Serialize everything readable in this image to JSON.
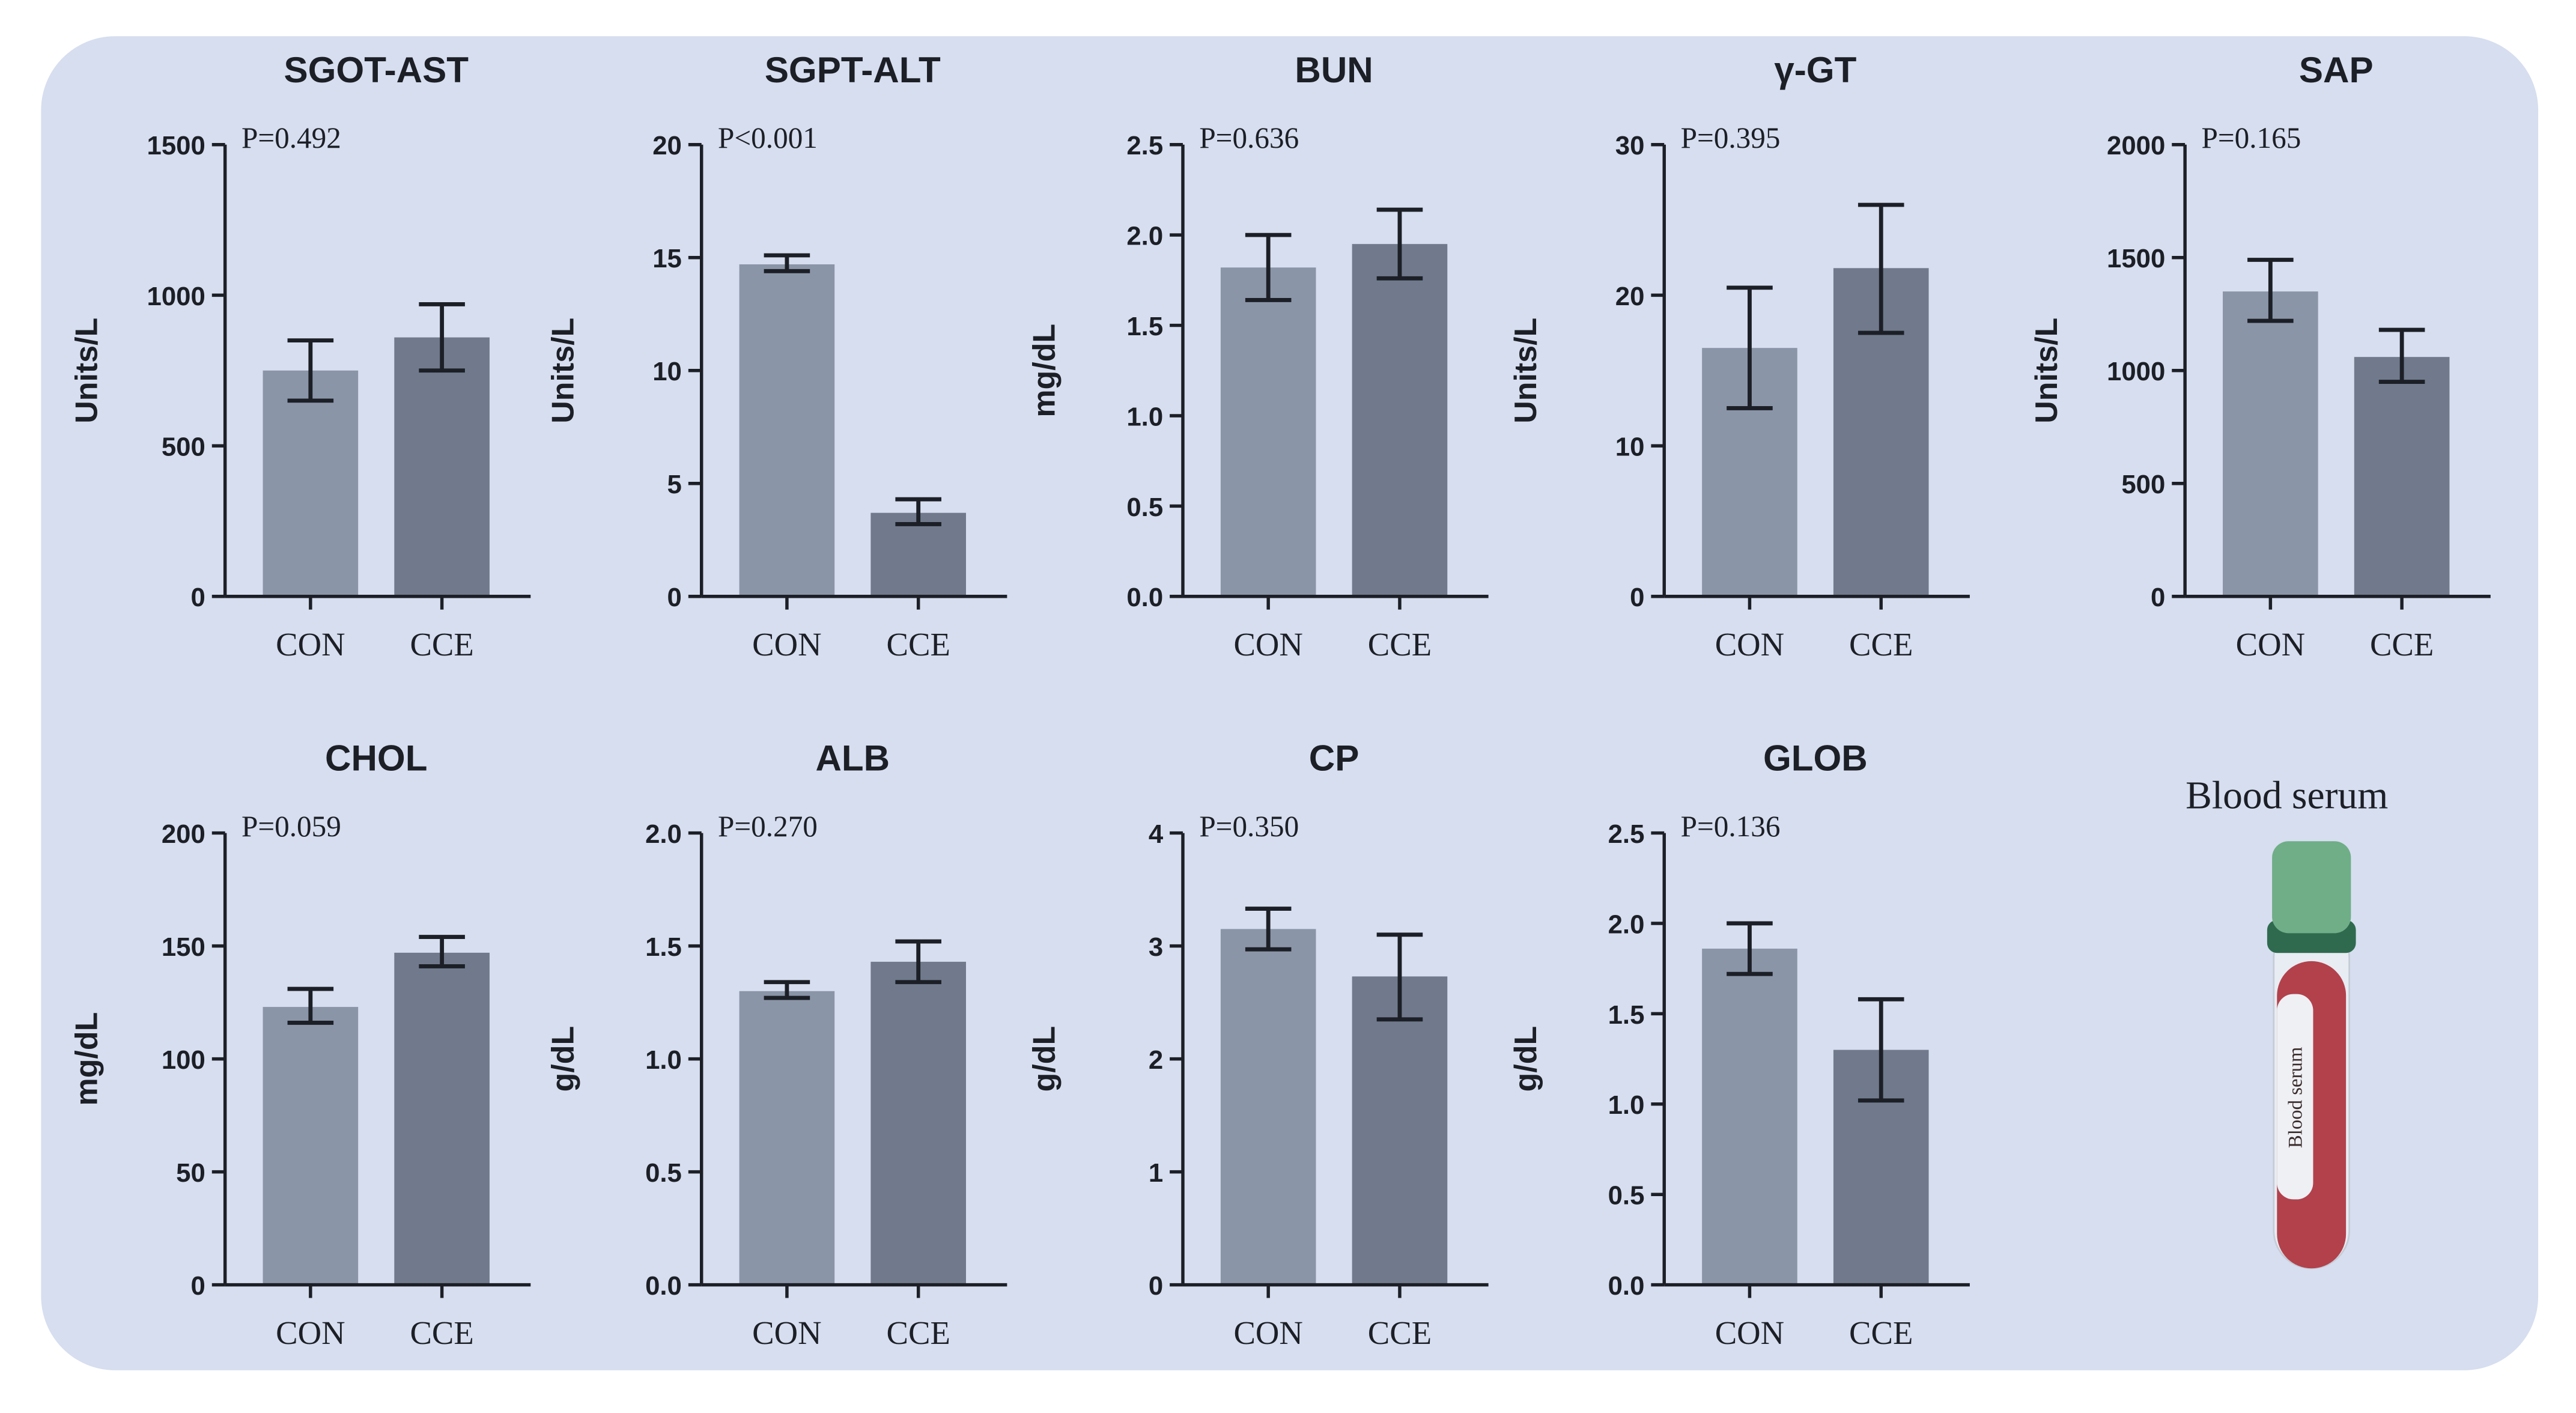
{
  "colors": {
    "background": "#d6deef",
    "CON": "#8a95a8",
    "CCE": "#707a8c",
    "axis": "#1c1f26",
    "cap": "#5d9b78",
    "blood": "#b2414c"
  },
  "illustration": {
    "title": "Blood serum",
    "tube_label": "Blood serum"
  },
  "chart_data": [
    {
      "type": "bar",
      "title": "SGOT-AST",
      "ylabel": "Units/L",
      "pvalue": "P=0.492",
      "categories": [
        "CON",
        "CCE"
      ],
      "values": [
        750,
        860
      ],
      "error_low": [
        650,
        750
      ],
      "error_high": [
        850,
        970
      ],
      "ylim": [
        0,
        1500
      ],
      "yticks": [
        "0",
        "500",
        "1000",
        "1500"
      ],
      "ytick_values": [
        0,
        500,
        1000,
        1500
      ]
    },
    {
      "type": "bar",
      "title": "SGPT-ALT",
      "ylabel": "Units/L",
      "pvalue": "P<0.001",
      "categories": [
        "CON",
        "CCE"
      ],
      "values": [
        14.7,
        3.7
      ],
      "error_low": [
        14.4,
        3.2
      ],
      "error_high": [
        15.1,
        4.3
      ],
      "ylim": [
        0,
        20
      ],
      "yticks": [
        "0",
        "5",
        "10",
        "15",
        "20"
      ],
      "ytick_values": [
        0,
        5,
        10,
        15,
        20
      ]
    },
    {
      "type": "bar",
      "title": "BUN",
      "ylabel": "mg/dL",
      "pvalue": "P=0.636",
      "categories": [
        "CON",
        "CCE"
      ],
      "values": [
        1.82,
        1.95
      ],
      "error_low": [
        1.64,
        1.76
      ],
      "error_high": [
        2.0,
        2.14
      ],
      "ylim": [
        0,
        2.5
      ],
      "yticks": [
        "0.0",
        "0.5",
        "1.0",
        "1.5",
        "2.0",
        "2.5"
      ],
      "ytick_values": [
        0,
        0.5,
        1,
        1.5,
        2,
        2.5
      ]
    },
    {
      "type": "bar",
      "title": "γ-GT",
      "ylabel": "Units/L",
      "pvalue": "P=0.395",
      "categories": [
        "CON",
        "CCE"
      ],
      "values": [
        16.5,
        21.8
      ],
      "error_low": [
        12.5,
        17.5
      ],
      "error_high": [
        20.5,
        26
      ],
      "ylim": [
        0,
        30
      ],
      "yticks": [
        "0",
        "10",
        "20",
        "30"
      ],
      "ytick_values": [
        0,
        10,
        20,
        30
      ]
    },
    {
      "type": "bar",
      "title": "SAP",
      "ylabel": "Units/L",
      "pvalue": "P=0.165",
      "categories": [
        "CON",
        "CCE"
      ],
      "values": [
        1350,
        1060
      ],
      "error_low": [
        1220,
        950
      ],
      "error_high": [
        1490,
        1180
      ],
      "ylim": [
        0,
        2000
      ],
      "yticks": [
        "0",
        "500",
        "1000",
        "1500",
        "2000"
      ],
      "ytick_values": [
        0,
        500,
        1000,
        1500,
        2000
      ]
    },
    {
      "type": "bar",
      "title": "CHOL",
      "ylabel": "mg/dL",
      "pvalue": "P=0.059",
      "categories": [
        "CON",
        "CCE"
      ],
      "values": [
        123,
        147
      ],
      "error_low": [
        116,
        141
      ],
      "error_high": [
        131,
        154
      ],
      "ylim": [
        0,
        200
      ],
      "yticks": [
        "0",
        "50",
        "100",
        "150",
        "200"
      ],
      "ytick_values": [
        0,
        50,
        100,
        150,
        200
      ]
    },
    {
      "type": "bar",
      "title": "ALB",
      "ylabel": "g/dL",
      "pvalue": "P=0.270",
      "categories": [
        "CON",
        "CCE"
      ],
      "values": [
        1.3,
        1.43
      ],
      "error_low": [
        1.27,
        1.34
      ],
      "error_high": [
        1.34,
        1.52
      ],
      "ylim": [
        0,
        2.0
      ],
      "yticks": [
        "0.0",
        "0.5",
        "1.0",
        "1.5",
        "2.0"
      ],
      "ytick_values": [
        0,
        0.5,
        1,
        1.5,
        2
      ]
    },
    {
      "type": "bar",
      "title": "CP",
      "ylabel": "g/dL",
      "pvalue": "P=0.350",
      "categories": [
        "CON",
        "CCE"
      ],
      "values": [
        3.15,
        2.73
      ],
      "error_low": [
        2.97,
        2.35
      ],
      "error_high": [
        3.33,
        3.1
      ],
      "ylim": [
        0,
        4
      ],
      "yticks": [
        "0",
        "1",
        "2",
        "3",
        "4"
      ],
      "ytick_values": [
        0,
        1,
        2,
        3,
        4
      ]
    },
    {
      "type": "bar",
      "title": "GLOB",
      "ylabel": "g/dL",
      "pvalue": "P=0.136",
      "categories": [
        "CON",
        "CCE"
      ],
      "values": [
        1.86,
        1.3
      ],
      "error_low": [
        1.72,
        1.02
      ],
      "error_high": [
        2.0,
        1.58
      ],
      "ylim": [
        0,
        2.5
      ],
      "yticks": [
        "0.0",
        "0.5",
        "1.0",
        "1.5",
        "2.0",
        "2.5"
      ],
      "ytick_values": [
        0,
        0.5,
        1,
        1.5,
        2,
        2.5
      ]
    }
  ]
}
